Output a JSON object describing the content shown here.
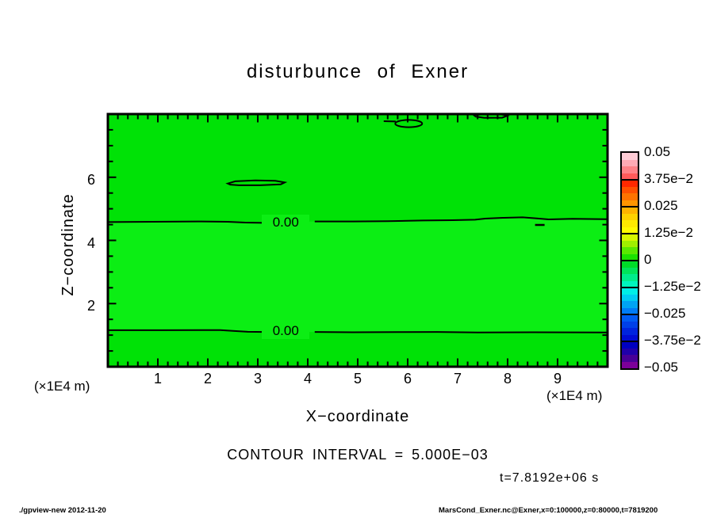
{
  "header": {
    "title": "disturbunce of Exner"
  },
  "annotations": {
    "contour_interval": "CONTOUR INTERVAL = 5.000E−03",
    "time": "t=7.8192e+06 s"
  },
  "footer": {
    "left": "./gpview-new  2012-11-20",
    "right": "MarsCond_Exner.nc@Exner,x=0:100000,z=0:80000,t=7819200"
  },
  "colorbar": {
    "labels": [
      "0.05",
      "3.75e−2",
      "0.025",
      "1.25e−2",
      "0",
      "−1.25e−2",
      "−0.025",
      "−3.75e−2",
      "−0.05"
    ],
    "cells": [
      "#ffccd6",
      "#ffaab4",
      "#ff8287",
      "#ff5a5a",
      "#ff2800",
      "#ff5000",
      "#ff7300",
      "#ff9600",
      "#ffb400",
      "#ffd200",
      "#ffe900",
      "#fffa00",
      "#d7f700",
      "#a0ef00",
      "#5ae800",
      "#1ce100",
      "#00dc28",
      "#00e45a",
      "#00ec8c",
      "#00f4be",
      "#00eee6",
      "#00ccf2",
      "#00a4f4",
      "#007cf6",
      "#005cf2",
      "#0040e8",
      "#0024de",
      "#000cd4",
      "#0000c0",
      "#2000aa",
      "#480097",
      "#7c0099"
    ]
  },
  "chart_data": {
    "type": "contour",
    "title": "disturbunce of Exner",
    "xlabel": "X−coordinate",
    "ylabel": "Z−coordinate",
    "x_unit_label": "(×1E4 m)",
    "x_range": [
      0,
      10
    ],
    "z_range": [
      0,
      8
    ],
    "x_major_ticks": [
      "1",
      "2",
      "3",
      "4",
      "5",
      "6",
      "7",
      "8",
      "9"
    ],
    "x_minor_step": 0.2,
    "z_major_ticks": [
      "2",
      "4",
      "6"
    ],
    "z_minor_step": 0.5,
    "contour_interval": 0.005,
    "colorbar_levels": [
      0.05,
      0.0375,
      0.025,
      0.0125,
      0,
      -0.0125,
      -0.025,
      -0.0375,
      -0.05
    ],
    "time_seconds": 7819200,
    "field": {
      "fill_outer": "#00e206",
      "fill_inner": "#0cee14"
    },
    "contours": [
      {
        "level": 0,
        "label": "0.00",
        "label_pos": [
          3.56,
          4.575
        ],
        "segments": [
          [
            [
              0,
              4.58
            ],
            [
              0.9,
              4.59
            ],
            [
              1.8,
              4.6
            ],
            [
              2.4,
              4.59
            ],
            [
              2.75,
              4.565
            ],
            [
              3.13,
              4.555
            ]
          ],
          [
            [
              4.14,
              4.6
            ],
            [
              4.9,
              4.6
            ],
            [
              5.6,
              4.61
            ],
            [
              6.3,
              4.63
            ],
            [
              6.9,
              4.64
            ],
            [
              7.35,
              4.655
            ],
            [
              7.55,
              4.69
            ],
            [
              7.9,
              4.715
            ],
            [
              8.3,
              4.73
            ],
            [
              8.56,
              4.7
            ],
            [
              8.82,
              4.665
            ],
            [
              9.3,
              4.685
            ],
            [
              10,
              4.67
            ]
          ]
        ]
      },
      {
        "level": 0,
        "label": "0.00",
        "label_pos": [
          3.56,
          1.12
        ],
        "segments": [
          [
            [
              0,
              1.155
            ],
            [
              1.1,
              1.155
            ],
            [
              2.25,
              1.16
            ],
            [
              2.5,
              1.135
            ],
            [
              2.8,
              1.105
            ],
            [
              3.13,
              1.1
            ]
          ],
          [
            [
              4.14,
              1.1
            ],
            [
              4.9,
              1.09
            ],
            [
              5.8,
              1.095
            ],
            [
              6.6,
              1.1
            ],
            [
              7.4,
              1.085
            ],
            [
              8.5,
              1.09
            ],
            [
              10,
              1.085
            ]
          ]
        ]
      }
    ],
    "closed_contours": {
      "loops": [
        {
          "name": "lens-contour",
          "points": [
            [
              2.4,
              5.8
            ],
            [
              2.55,
              5.87
            ],
            [
              2.95,
              5.9
            ],
            [
              3.35,
              5.885
            ],
            [
              3.54,
              5.835
            ],
            [
              3.46,
              5.775
            ],
            [
              3.05,
              5.745
            ],
            [
              2.62,
              5.745
            ],
            [
              2.45,
              5.765
            ]
          ]
        },
        {
          "name": "top-edge-contour",
          "points": [
            [
              7.32,
              7.97
            ],
            [
              7.52,
              7.995
            ],
            [
              7.87,
              7.99
            ],
            [
              7.99,
              7.945
            ],
            [
              7.89,
              7.885
            ],
            [
              7.53,
              7.88
            ],
            [
              7.36,
              7.92
            ]
          ]
        }
      ],
      "ellipse": {
        "cx": 6.02,
        "cz": 7.7,
        "rx_units": 0.27,
        "ry_units": 0.115
      },
      "ellipse_lead": [
        [
          5.52,
          7.775
        ],
        [
          5.76,
          7.765
        ]
      ]
    },
    "zero_dash": [
      [
        8.55,
        4.49
      ],
      [
        8.74,
        4.49
      ]
    ]
  }
}
